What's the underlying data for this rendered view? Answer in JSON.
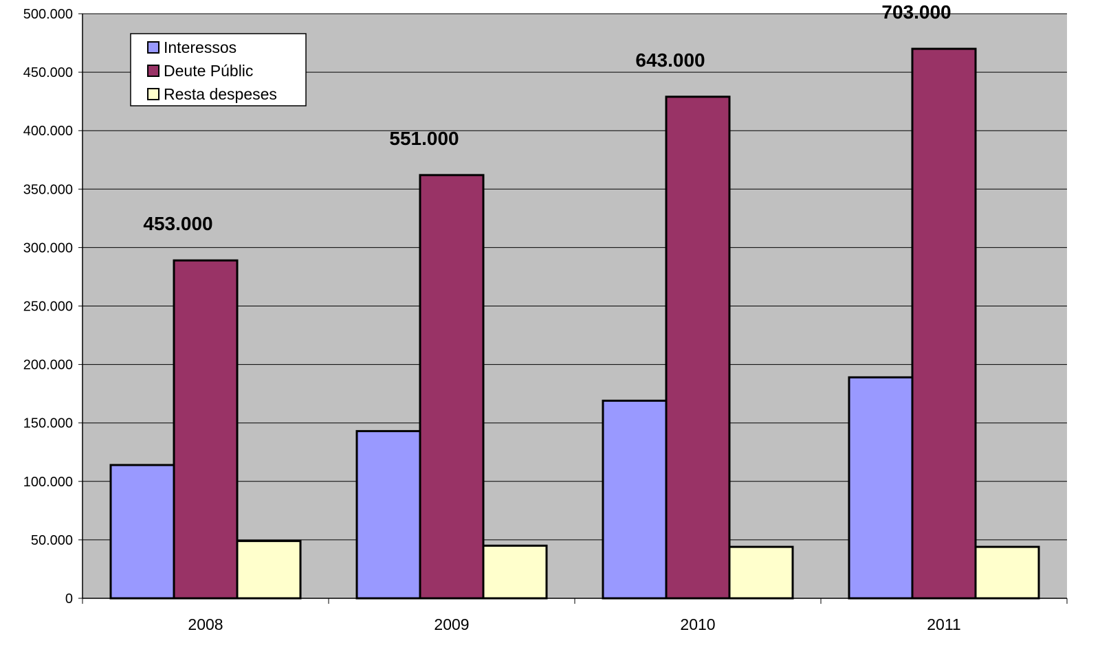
{
  "chart_data": {
    "type": "bar",
    "title": "",
    "xlabel": "",
    "ylabel": "",
    "categories": [
      "2008",
      "2009",
      "2010",
      "2011"
    ],
    "series": [
      {
        "name": "Interessos",
        "values": [
          114000,
          143000,
          169000,
          189000
        ],
        "color": "#9999ff"
      },
      {
        "name": "Deute Públic",
        "values": [
          289000,
          362000,
          429000,
          470000
        ],
        "color": "#993366"
      },
      {
        "name": "Resta despeses",
        "values": [
          49000,
          45000,
          44000,
          44000
        ],
        "color": "#ffffcc"
      }
    ],
    "annotations": [
      "453.000",
      "551.000",
      "643.000",
      "703.000"
    ],
    "y_ticks": [
      {
        "value": 0,
        "label": "0"
      },
      {
        "value": 50000,
        "label": "50.000"
      },
      {
        "value": 100000,
        "label": "100.000"
      },
      {
        "value": 150000,
        "label": "150.000"
      },
      {
        "value": 200000,
        "label": "200.000"
      },
      {
        "value": 250000,
        "label": "250.000"
      },
      {
        "value": 300000,
        "label": "300.000"
      },
      {
        "value": 350000,
        "label": "350.000"
      },
      {
        "value": 400000,
        "label": "400.000"
      },
      {
        "value": 450000,
        "label": "450.000"
      },
      {
        "value": 500000,
        "label": "500.000"
      }
    ],
    "ylim": [
      0,
      500000
    ],
    "grid": true,
    "legend_position": "top-left",
    "plot_background": "#c0c0c0"
  }
}
